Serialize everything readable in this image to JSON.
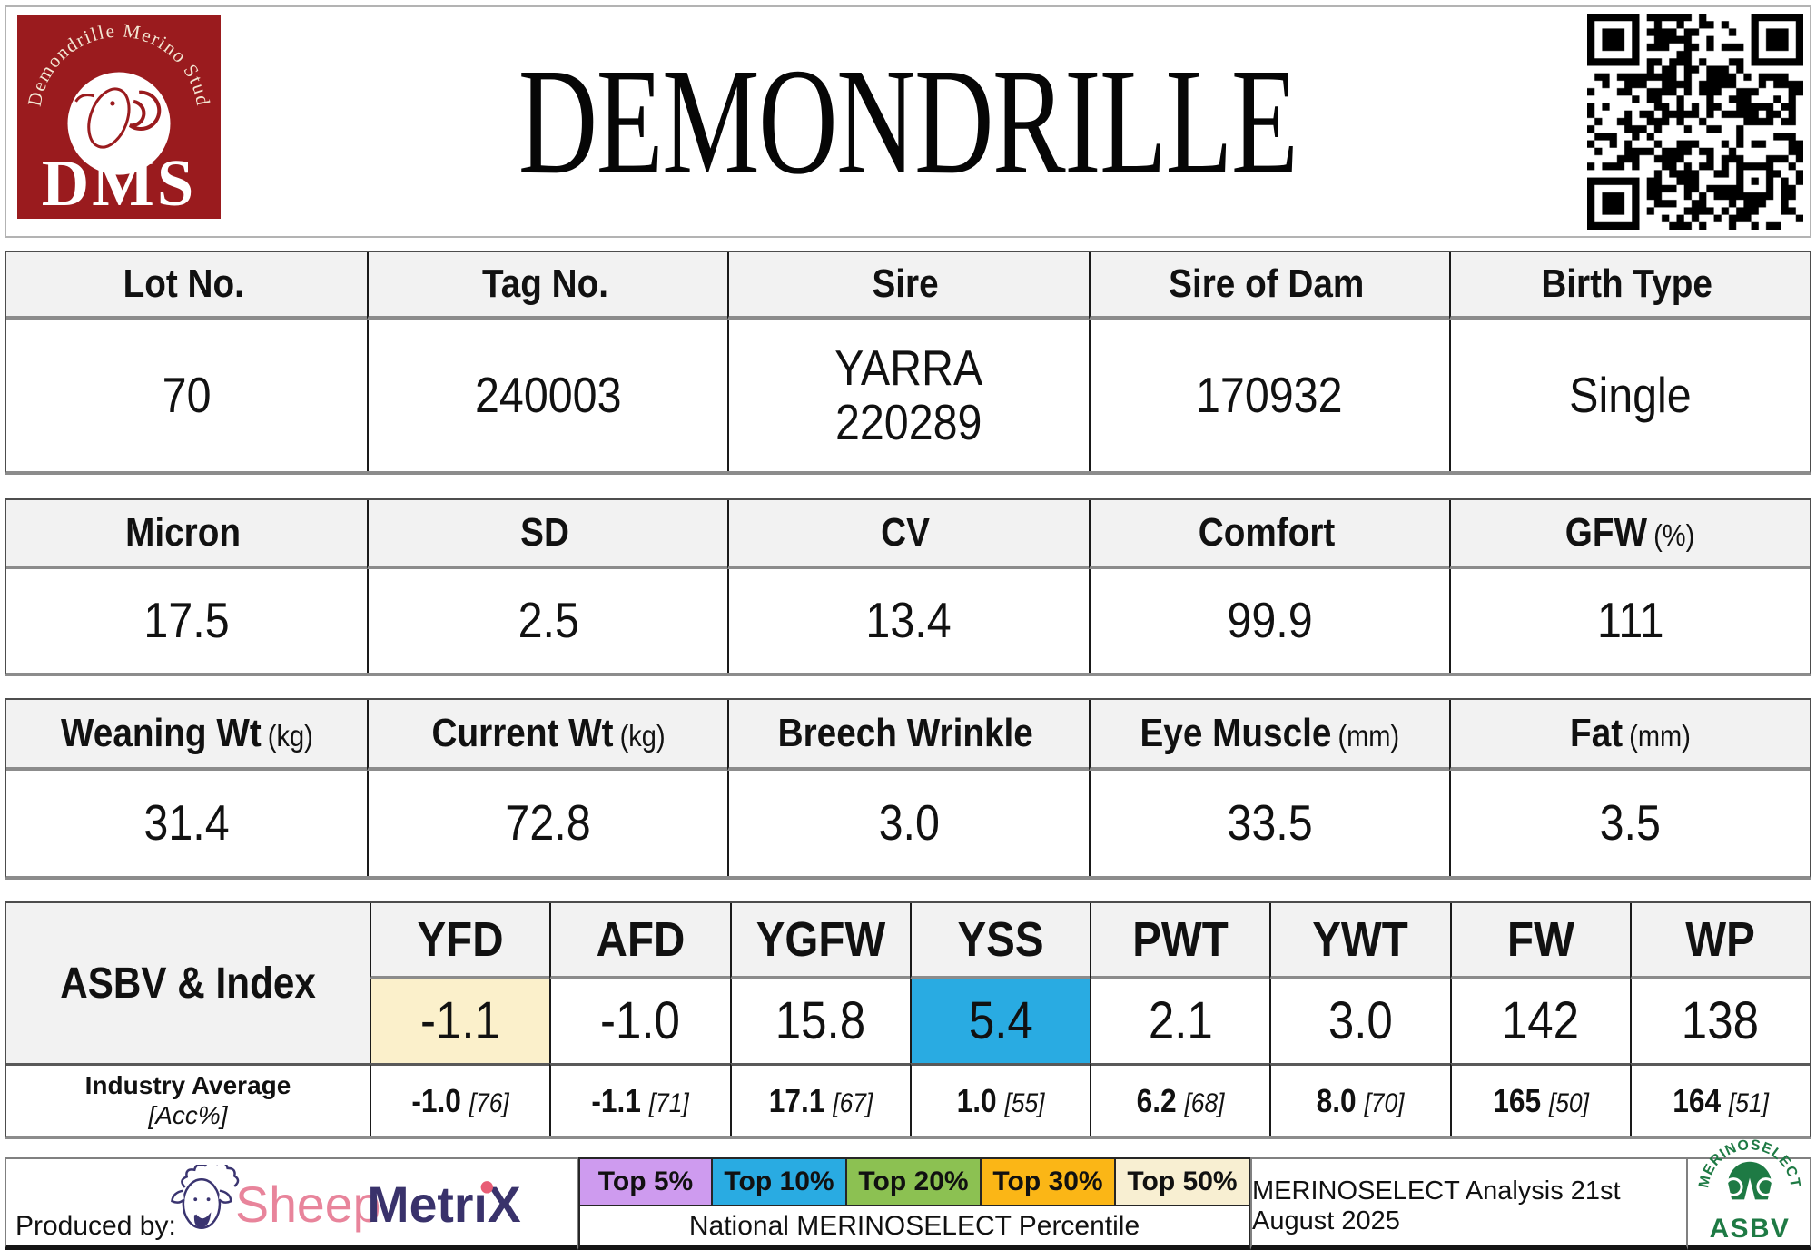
{
  "header": {
    "title": "DEMONDRILLE",
    "logo": {
      "arc_text": "Demondrille Merino Stud",
      "acronym": "DMS",
      "bg_color": "#9A1B1E"
    }
  },
  "info": {
    "headers": [
      {
        "label": "Lot No.",
        "unit": ""
      },
      {
        "label": "Tag No.",
        "unit": ""
      },
      {
        "label": "Sire",
        "unit": ""
      },
      {
        "label": "Sire of Dam",
        "unit": ""
      },
      {
        "label": "Birth Type",
        "unit": ""
      }
    ],
    "values": [
      "70",
      "240003",
      "YARRA\n220289",
      "170932",
      "Single"
    ]
  },
  "wool": {
    "headers": [
      {
        "label": "Micron",
        "unit": ""
      },
      {
        "label": "SD",
        "unit": ""
      },
      {
        "label": "CV",
        "unit": ""
      },
      {
        "label": "Comfort",
        "unit": ""
      },
      {
        "label": "GFW",
        "unit": "(%)"
      }
    ],
    "values": [
      "17.5",
      "2.5",
      "13.4",
      "99.9",
      "111"
    ]
  },
  "body": {
    "headers": [
      {
        "label": "Weaning Wt",
        "unit": "(kg)"
      },
      {
        "label": "Current Wt",
        "unit": "(kg)"
      },
      {
        "label": "Breech Wrinkle",
        "unit": ""
      },
      {
        "label": "Eye Muscle",
        "unit": "(mm)"
      },
      {
        "label": "Fat",
        "unit": "(mm)"
      }
    ],
    "values": [
      "31.4",
      "72.8",
      "3.0",
      "33.5",
      "3.5"
    ]
  },
  "asbv": {
    "row_label": "ASBV & Index",
    "columns": [
      "YFD",
      "AFD",
      "YGFW",
      "YSS",
      "PWT",
      "YWT",
      "FW",
      "WP"
    ],
    "values": [
      "-1.1",
      "-1.0",
      "15.8",
      "5.4",
      "2.1",
      "3.0",
      "142",
      "138"
    ],
    "value_bg": [
      "#FBF0CB",
      "",
      "",
      "#29ABE2",
      "",
      "",
      "",
      ""
    ],
    "industry_label": "Industry Average",
    "acc_label": "[Acc%]",
    "industry": [
      {
        "value": "-1.0",
        "acc": "[76]"
      },
      {
        "value": "-1.1",
        "acc": "[71]"
      },
      {
        "value": "17.1",
        "acc": "[67]"
      },
      {
        "value": "1.0",
        "acc": "[55]"
      },
      {
        "value": "6.2",
        "acc": "[68]"
      },
      {
        "value": "8.0",
        "acc": "[70]"
      },
      {
        "value": "165",
        "acc": "[50]"
      },
      {
        "value": "164",
        "acc": "[51]"
      }
    ]
  },
  "footer": {
    "produced_by": "Produced by:",
    "sheepmetrix": {
      "word1": "Sheep",
      "word2_a": "Metr",
      "word2_b": "ı",
      "word2_c": "X",
      "word1_color": "#E8849B",
      "word2_color": "#39326B",
      "dot_color": "#E85D75"
    },
    "legend": [
      {
        "label": "Top 5%",
        "color": "#CE9BEF"
      },
      {
        "label": "Top 10%",
        "color": "#29ABE2"
      },
      {
        "label": "Top 20%",
        "color": "#8CC152"
      },
      {
        "label": "Top 30%",
        "color": "#FBB616"
      },
      {
        "label": "Top 50%",
        "color": "#F8EFD2"
      }
    ],
    "caption": "National MERINOSELECT Percentile",
    "analysis": "MERINOSELECT Analysis 21st August 2025",
    "merinoselect": {
      "arc_text": "MERINOSELECT",
      "sub": "ASBV",
      "color": "#1E7A44"
    }
  }
}
